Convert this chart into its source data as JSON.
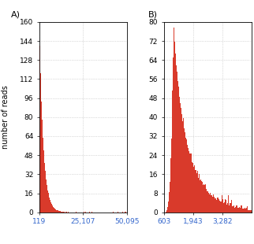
{
  "title_A": "A)",
  "title_B": "B)",
  "ylabel": "number of reads",
  "panel_A": {
    "xmin": 119,
    "xmax": 50095,
    "ymin": 0,
    "ymax": 160,
    "yticks": [
      0,
      16,
      32,
      48,
      64,
      80,
      96,
      112,
      128,
      144,
      160
    ],
    "xticks": [
      119,
      25107,
      50095
    ],
    "xtick_labels": [
      "119",
      "25,107",
      "50,095"
    ],
    "peak_y": 160,
    "decay_rate": 0.00045,
    "n_bars": 500
  },
  "panel_B": {
    "xmin": 603,
    "xmax": 4621,
    "ymin": 0,
    "ymax": 80,
    "yticks": [
      0,
      8,
      16,
      24,
      32,
      40,
      48,
      56,
      64,
      72,
      80
    ],
    "xticks": [
      603,
      1943,
      3282
    ],
    "xtick_labels": [
      "603",
      "1,943",
      "3,282"
    ],
    "peak_y": 80,
    "n_bars": 400
  },
  "bar_color": "#d93a2b",
  "grid_color": "#bbbbbb",
  "tick_color": "#3366cc",
  "background_color": "#ffffff",
  "label_fontsize": 7,
  "tick_fontsize": 6.5,
  "title_fontsize": 8
}
